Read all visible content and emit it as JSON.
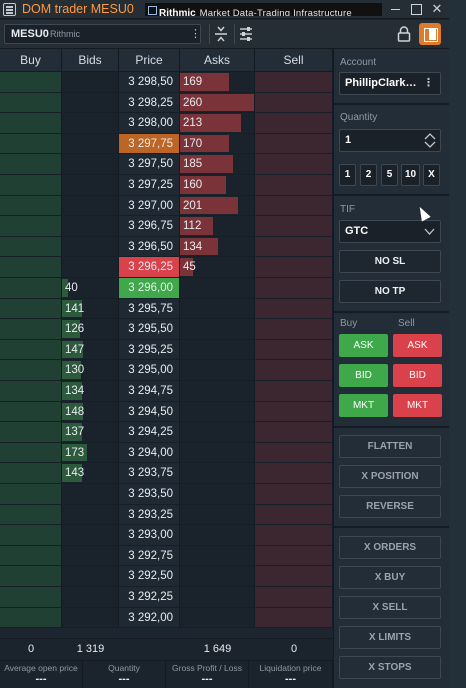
{
  "window": {
    "title": "DOM trader MESU0",
    "brand": "Rithmic",
    "brand_tagline": "Market Data-Trading Infrastructure",
    "minimize_icon": "minimize-icon",
    "maximize_icon": "maximize-icon",
    "close_icon": "close-icon",
    "close_glyph": "✕"
  },
  "toolbar": {
    "symbol": "MESU0",
    "connection": "Rithmic",
    "menu_glyph": "⋮"
  },
  "ladder": {
    "headers": {
      "buy": "Buy",
      "bids": "Bids",
      "price": "Price",
      "asks": "Asks",
      "sell": "Sell"
    },
    "rows": [
      {
        "price": "3 298,50",
        "ask": "169",
        "ask_level": 0.33,
        "bid": "",
        "bid_level": 0,
        "hl": ""
      },
      {
        "price": "3 298,25",
        "ask": "260",
        "ask_level": 0.5,
        "bid": "",
        "bid_level": 0,
        "hl": ""
      },
      {
        "price": "3 298,00",
        "ask": "213",
        "ask_level": 0.41,
        "bid": "",
        "bid_level": 0,
        "hl": ""
      },
      {
        "price": "3 297,75",
        "ask": "170",
        "ask_level": 0.33,
        "bid": "",
        "bid_level": 0,
        "hl": "last"
      },
      {
        "price": "3 297,50",
        "ask": "185",
        "ask_level": 0.36,
        "bid": "",
        "bid_level": 0,
        "hl": ""
      },
      {
        "price": "3 297,25",
        "ask": "160",
        "ask_level": 0.31,
        "bid": "",
        "bid_level": 0,
        "hl": ""
      },
      {
        "price": "3 297,00",
        "ask": "201",
        "ask_level": 0.39,
        "bid": "",
        "bid_level": 0,
        "hl": ""
      },
      {
        "price": "3 296,75",
        "ask": "112",
        "ask_level": 0.22,
        "bid": "",
        "bid_level": 0,
        "hl": ""
      },
      {
        "price": "3 296,50",
        "ask": "134",
        "ask_level": 0.26,
        "bid": "",
        "bid_level": 0,
        "hl": ""
      },
      {
        "price": "3 296,25",
        "ask": "45",
        "ask_level": 0.09,
        "bid": "",
        "bid_level": 0,
        "hl": "ask"
      },
      {
        "price": "3 296,00",
        "ask": "",
        "ask_level": 0,
        "bid": "40",
        "bid_level": 0.08,
        "hl": "bid"
      },
      {
        "price": "3 295,75",
        "ask": "",
        "ask_level": 0,
        "bid": "141",
        "bid_level": 0.27,
        "hl": ""
      },
      {
        "price": "3 295,50",
        "ask": "",
        "ask_level": 0,
        "bid": "126",
        "bid_level": 0.24,
        "hl": ""
      },
      {
        "price": "3 295,25",
        "ask": "",
        "ask_level": 0,
        "bid": "147",
        "bid_level": 0.28,
        "hl": ""
      },
      {
        "price": "3 295,00",
        "ask": "",
        "ask_level": 0,
        "bid": "130",
        "bid_level": 0.25,
        "hl": ""
      },
      {
        "price": "3 294,75",
        "ask": "",
        "ask_level": 0,
        "bid": "134",
        "bid_level": 0.26,
        "hl": ""
      },
      {
        "price": "3 294,50",
        "ask": "",
        "ask_level": 0,
        "bid": "148",
        "bid_level": 0.28,
        "hl": ""
      },
      {
        "price": "3 294,25",
        "ask": "",
        "ask_level": 0,
        "bid": "137",
        "bid_level": 0.26,
        "hl": ""
      },
      {
        "price": "3 294,00",
        "ask": "",
        "ask_level": 0,
        "bid": "173",
        "bid_level": 0.33,
        "hl": ""
      },
      {
        "price": "3 293,75",
        "ask": "",
        "ask_level": 0,
        "bid": "143",
        "bid_level": 0.27,
        "hl": ""
      },
      {
        "price": "3 293,50",
        "ask": "",
        "ask_level": 0,
        "bid": "",
        "bid_level": 0,
        "hl": ""
      },
      {
        "price": "3 293,25",
        "ask": "",
        "ask_level": 0,
        "bid": "",
        "bid_level": 0,
        "hl": ""
      },
      {
        "price": "3 293,00",
        "ask": "",
        "ask_level": 0,
        "bid": "",
        "bid_level": 0,
        "hl": ""
      },
      {
        "price": "3 292,75",
        "ask": "",
        "ask_level": 0,
        "bid": "",
        "bid_level": 0,
        "hl": ""
      },
      {
        "price": "3 292,50",
        "ask": "",
        "ask_level": 0,
        "bid": "",
        "bid_level": 0,
        "hl": ""
      },
      {
        "price": "3 292,25",
        "ask": "",
        "ask_level": 0,
        "bid": "",
        "bid_level": 0,
        "hl": ""
      },
      {
        "price": "3 292,00",
        "ask": "",
        "ask_level": 0,
        "bid": "",
        "bid_level": 0,
        "hl": ""
      }
    ],
    "totals": {
      "buy": "0",
      "bids": "1 319",
      "asks": "1 649",
      "sell": "0"
    }
  },
  "stats": [
    {
      "label": "Average open price",
      "value": "---"
    },
    {
      "label": "Quantity",
      "value": "---"
    },
    {
      "label": "Gross Profit / Loss",
      "value": "---"
    },
    {
      "label": "Liquidation price",
      "value": "---"
    }
  ],
  "panel": {
    "account_label": "Account",
    "account_value": "PhillipClark…",
    "quantity_label": "Quantity",
    "quantity_value": "1",
    "quick_qty": [
      "1",
      "2",
      "5",
      "10",
      "X"
    ],
    "tif_label": "TIF",
    "tif_value": "GTC",
    "no_sl": "NO SL",
    "no_tp": "NO TP",
    "buy_label": "Buy",
    "sell_label": "Sell",
    "buy_ask": "ASK",
    "sell_ask": "ASK",
    "buy_bid": "BID",
    "sell_bid": "BID",
    "buy_mkt": "MKT",
    "sell_mkt": "MKT",
    "flatten": "FLATTEN",
    "x_position": "X POSITION",
    "reverse": "REVERSE",
    "x_orders": "X ORDERS",
    "x_buy": "X BUY",
    "x_sell": "X SELL",
    "x_limits": "X LIMITS",
    "x_stops": "X STOPS"
  },
  "colors": {
    "title_accent": "#ff9a3d",
    "buy_green": "#3fa84a",
    "sell_red": "#d9414b",
    "last_trade": "#bc6524",
    "buy_column": "#1f4033",
    "sell_column": "#3c2630"
  }
}
